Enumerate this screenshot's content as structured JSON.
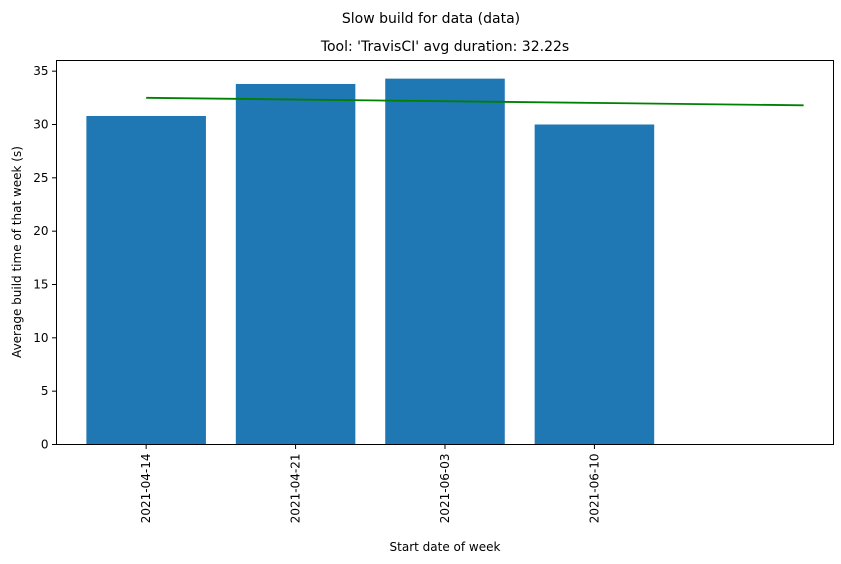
{
  "figure": {
    "suptitle": "Slow build for data (data)"
  },
  "chart_data": {
    "type": "bar",
    "title": "Tool: 'TravisCI' avg duration: 32.22s",
    "xlabel": "Start date of week",
    "ylabel": "Average build time of that week (s)",
    "categories": [
      "2021-04-14",
      "2021-04-21",
      "2021-06-03",
      "2021-06-10"
    ],
    "values": [
      30.8,
      33.8,
      34.3,
      30.0
    ],
    "bar_color": "#1f77b4",
    "ylim": [
      0,
      36
    ],
    "yticks": [
      0,
      5,
      10,
      15,
      20,
      25,
      30,
      35
    ],
    "xlim": [
      -0.6,
      4.6
    ],
    "grid": false,
    "trend_line": {
      "color": "#008000",
      "x": [
        0,
        4.4
      ],
      "y": [
        32.5,
        31.8
      ]
    }
  }
}
